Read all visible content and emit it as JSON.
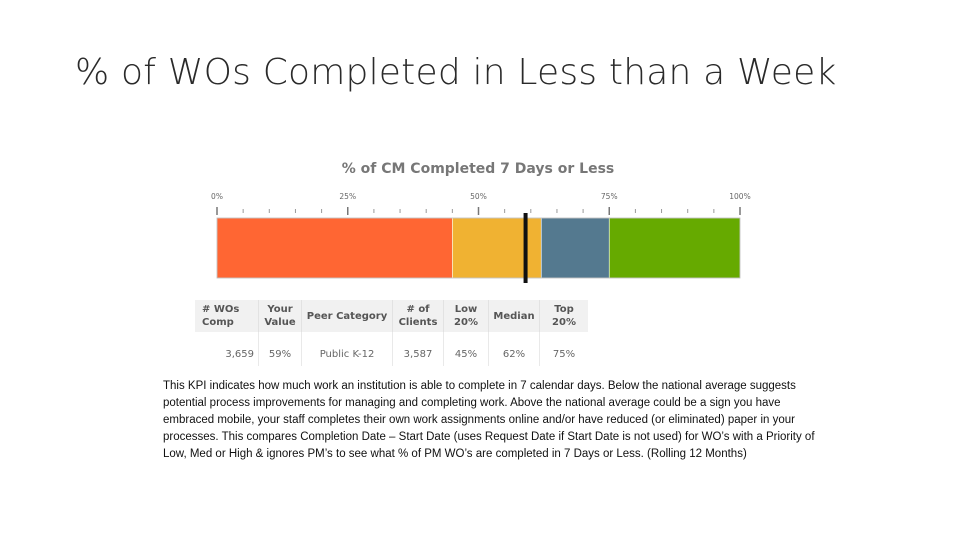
{
  "slide": {
    "title": "% of WOs Completed in Less than a Week"
  },
  "chart_data": {
    "type": "bar",
    "title": "% of CM Completed 7 Days or Less",
    "xlim": [
      0,
      100
    ],
    "ticks": [
      0,
      25,
      50,
      75,
      100
    ],
    "tick_labels": [
      "0%",
      "25%",
      "50%",
      "75%",
      "100%"
    ],
    "bands": [
      {
        "from": 0,
        "to": 45,
        "color": "#ff6633"
      },
      {
        "from": 45,
        "to": 62,
        "color": "#f0b232"
      },
      {
        "from": 62,
        "to": 75,
        "color": "#54798f"
      },
      {
        "from": 75,
        "to": 100,
        "color": "#66aa00"
      }
    ],
    "marker": {
      "value": 59,
      "color": "#111111"
    }
  },
  "kpi_table": {
    "headers": [
      "# WOs Comp",
      "Your Value",
      "Peer Category",
      "# of Clients",
      "Low 20%",
      "Median",
      "Top 20%"
    ],
    "row": [
      "3,659",
      "59%",
      "Public K-12",
      "3,587",
      "45%",
      "62%",
      "75%"
    ]
  },
  "description": "This KPI indicates how much work an institution is able to complete in 7 calendar days.  Below the national average suggests potential process improvements for managing and completing work.  Above the national average could be a sign you have embraced mobile, your staff completes their own work assignments online and/or have reduced (or eliminated) paper in your processes. This compares Completion Date – Start Date (uses Request Date if Start Date is not used)  for WO’s with a Priority of Low, Med or High & ignores PM’s to see what % of PM WO’s are completed in 7 Days or Less. (Rolling 12 Months)"
}
